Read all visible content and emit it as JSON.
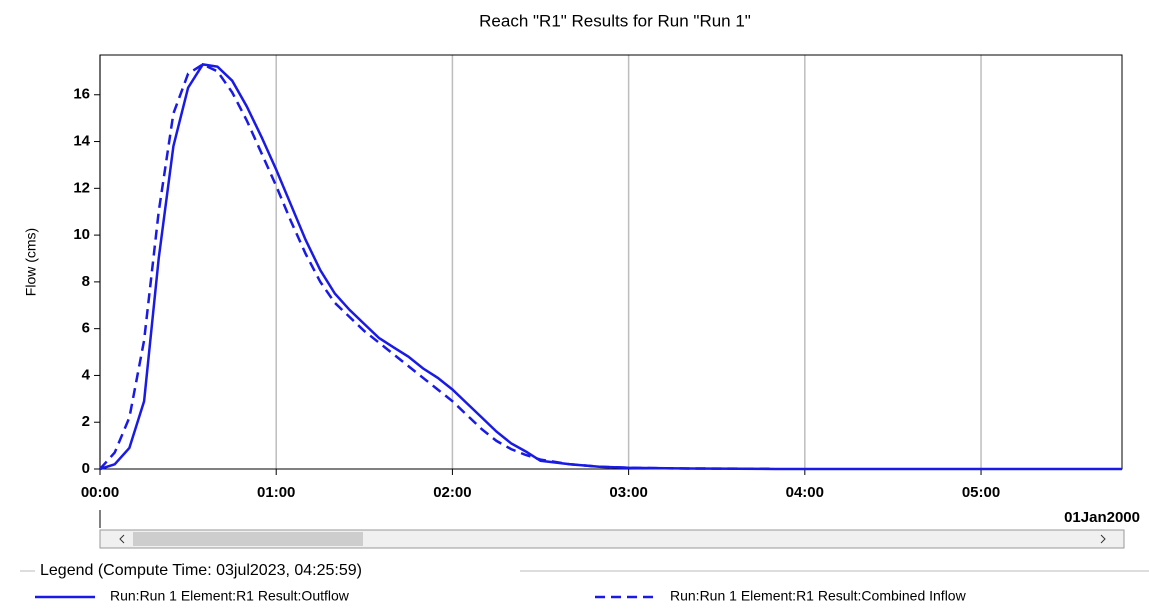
{
  "chart_data": {
    "type": "line",
    "title": "Reach \"R1\" Results for Run \"Run 1\"",
    "y_label": "Flow (cms)",
    "date_label": "01Jan2000",
    "legend_title": "Legend (Compute Time: 03jul2023, 04:25:59)",
    "x": [
      0,
      5,
      10,
      15,
      20,
      25,
      30,
      35,
      40,
      45,
      50,
      55,
      60,
      65,
      70,
      75,
      80,
      85,
      90,
      95,
      100,
      105,
      110,
      115,
      120,
      125,
      130,
      135,
      140,
      145,
      150,
      160,
      170,
      180,
      200,
      230,
      348
    ],
    "xlim": [
      0,
      348
    ],
    "xticks": [
      {
        "value": 0,
        "label": "00:00"
      },
      {
        "value": 60,
        "label": "01:00"
      },
      {
        "value": 120,
        "label": "02:00"
      },
      {
        "value": 180,
        "label": "03:00"
      },
      {
        "value": 240,
        "label": "04:00"
      },
      {
        "value": 300,
        "label": "05:00"
      }
    ],
    "ylim": [
      0,
      17.7
    ],
    "yticks": [
      0,
      2,
      4,
      6,
      8,
      10,
      12,
      14,
      16
    ],
    "grid": "x",
    "series": [
      {
        "name": "Run:Run 1 Element:R1 Result:Outflow",
        "color": "#1a1ae6",
        "style": "solid",
        "values": [
          0,
          0.2,
          0.9,
          2.9,
          9,
          13.8,
          16.3,
          17.3,
          17.2,
          16.6,
          15.5,
          14.2,
          12.8,
          11.3,
          9.8,
          8.5,
          7.5,
          6.8,
          6.2,
          5.6,
          5.2,
          4.8,
          4.3,
          3.9,
          3.4,
          2.8,
          2.2,
          1.6,
          1.1,
          0.75,
          0.35,
          0.2,
          0.1,
          0.05,
          0.02,
          0,
          0
        ]
      },
      {
        "name": "Run:Run 1 Element:R1 Result:Combined Inflow",
        "color": "#1a1ae6",
        "style": "dashed",
        "values": [
          0,
          0.7,
          2.2,
          5.5,
          11,
          15.2,
          16.9,
          17.3,
          17.0,
          16.1,
          14.9,
          13.5,
          12.1,
          10.6,
          9.2,
          8.0,
          7.1,
          6.5,
          5.9,
          5.4,
          4.9,
          4.4,
          3.9,
          3.4,
          2.9,
          2.3,
          1.7,
          1.2,
          0.85,
          0.6,
          0.4,
          0.2,
          0.1,
          0.05,
          0.02,
          0.01,
          null
        ]
      }
    ]
  }
}
